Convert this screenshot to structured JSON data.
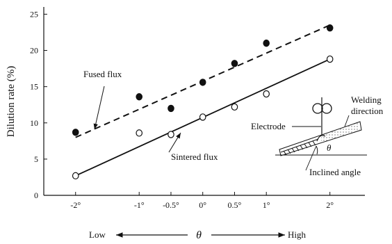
{
  "chart_data": {
    "type": "scatter",
    "ylabel": "Dilution rate (%)",
    "ylim": [
      0,
      26
    ],
    "yticks": [
      0,
      5,
      10,
      15,
      20,
      25
    ],
    "x_tick_labels": [
      "-2°",
      "-1°",
      "-0.5°",
      "0°",
      "0.5°",
      "1°",
      "2°"
    ],
    "x_tick_values": [
      -2,
      -1,
      -0.5,
      0,
      0.5,
      1,
      2
    ],
    "xlim": [
      -2.5,
      2.55
    ],
    "axis_bottom": {
      "low": "Low",
      "symbol": "θ",
      "high": "High"
    },
    "series": [
      {
        "name": "Fused flux",
        "marker": "filled-circle",
        "line": "dashed",
        "points": [
          {
            "x": -2,
            "y": 8.7
          },
          {
            "x": -1,
            "y": 13.6
          },
          {
            "x": -0.5,
            "y": 12.0
          },
          {
            "x": 0,
            "y": 15.6
          },
          {
            "x": 0.5,
            "y": 18.2
          },
          {
            "x": 1,
            "y": 21.0
          },
          {
            "x": 2,
            "y": 23.1
          }
        ],
        "fit": [
          {
            "x": -2,
            "y": 8.0
          },
          {
            "x": 2,
            "y": 23.5
          }
        ]
      },
      {
        "name": "Sintered flux",
        "marker": "open-circle",
        "line": "solid",
        "points": [
          {
            "x": -2,
            "y": 2.7
          },
          {
            "x": -1,
            "y": 8.6
          },
          {
            "x": -0.5,
            "y": 8.4
          },
          {
            "x": 0,
            "y": 10.8
          },
          {
            "x": 0.5,
            "y": 12.2
          },
          {
            "x": 1,
            "y": 14.0
          },
          {
            "x": 2,
            "y": 18.8
          }
        ],
        "fit": [
          {
            "x": -2,
            "y": 2.7
          },
          {
            "x": 2,
            "y": 18.8
          }
        ]
      }
    ],
    "inset": {
      "electrode": "Electrode",
      "welding_direction_1": "Welding",
      "welding_direction_2": "direction",
      "angle_symbol": "θ",
      "inclined_angle": "Inclined angle"
    },
    "grid": false
  }
}
